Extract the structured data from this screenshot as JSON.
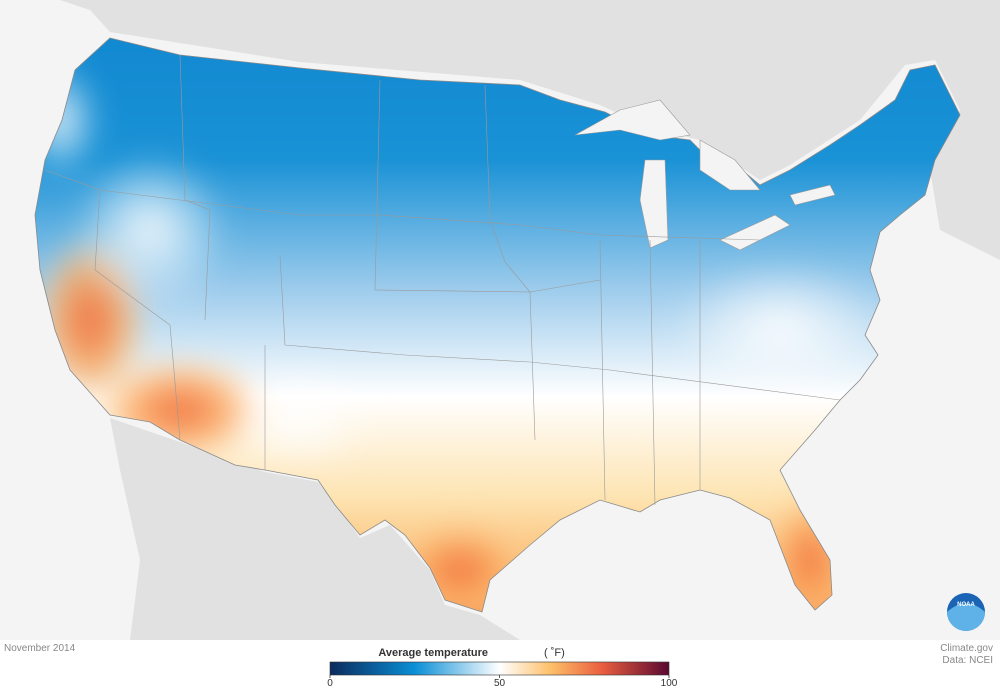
{
  "map": {
    "date": "November 2014",
    "legend": {
      "title": "Average temperature",
      "unit": "( ˚F)",
      "range": [
        0,
        100
      ],
      "ticks": [
        0,
        50,
        100
      ],
      "colorscale": [
        {
          "value": 0,
          "color": "#0b2a5c"
        },
        {
          "value": 25,
          "color": "#0a8fd6"
        },
        {
          "value": 50,
          "color": "#ffffff"
        },
        {
          "value": 65,
          "color": "#fdc06a"
        },
        {
          "value": 80,
          "color": "#ea5f3f"
        },
        {
          "value": 100,
          "color": "#5a0831"
        }
      ]
    },
    "credit": "Climate.gov",
    "source": "Data: NCEI",
    "logo": "NOAA"
  }
}
